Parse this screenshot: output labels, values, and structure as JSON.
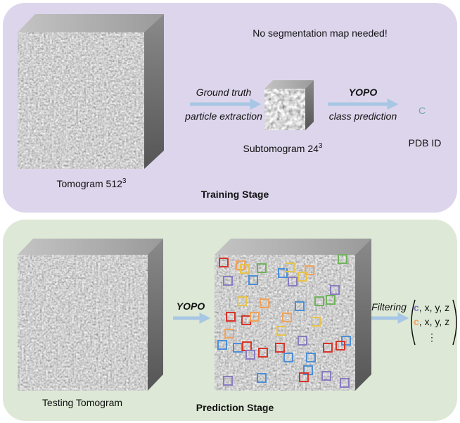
{
  "training": {
    "note": "No segmentation map needed!",
    "arrow1_top": "Ground truth",
    "arrow1_bottom": "particle extraction",
    "arrow2_top": "YOPO",
    "arrow2_bottom": "class prediction",
    "class_symbol": "C",
    "subtomogram_label": "Subtomogram 24",
    "subtomogram_exp": "3",
    "pdb_label": "PDB ID",
    "tomogram_label": "Tomogram 512",
    "tomogram_exp": "3",
    "stage": "Training Stage"
  },
  "prediction": {
    "arrow_label": "YOPO",
    "tomogram_label": "Testing Tomogram",
    "filter_label": "Filtering",
    "rows": [
      {
        "class": "c",
        "coords": ", x, y, z"
      },
      {
        "class": "c",
        "coords": ", x, y, z"
      }
    ],
    "ellipsis": "⋮",
    "stage": "Prediction Stage"
  }
}
